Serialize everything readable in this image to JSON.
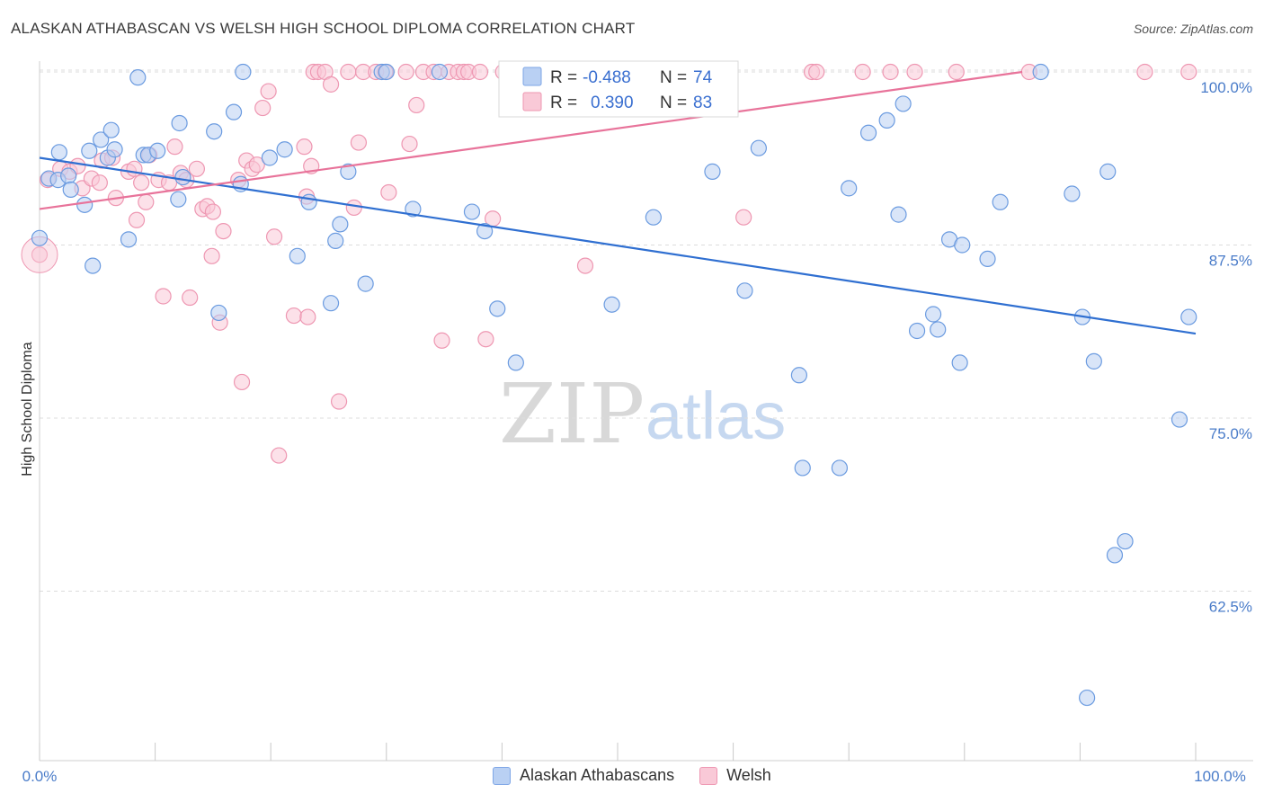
{
  "header": {
    "title": "ALASKAN ATHABASCAN VS WELSH HIGH SCHOOL DIPLOMA CORRELATION CHART",
    "source": "Source: ZipAtlas.com"
  },
  "watermark": {
    "zip": "ZIP",
    "atlas": "atlas"
  },
  "legend_top": {
    "rows": [
      {
        "r_label": "R =",
        "r_value": "-0.488",
        "n_label": "N =",
        "n_value": "74"
      },
      {
        "r_label": "R =",
        "r_value": "0.390",
        "n_label": "N =",
        "n_value": "83"
      }
    ]
  },
  "legend_bottom": {
    "items": [
      "Alaskan Athabascans",
      "Welsh"
    ]
  },
  "chart_data": {
    "type": "scatter",
    "title": "ALASKAN ATHABASCAN VS WELSH HIGH SCHOOL DIPLOMA CORRELATION CHART",
    "xlabel": "",
    "ylabel": "High School Diploma",
    "xlim": [
      0,
      105
    ],
    "ylim": [
      50,
      101.5
    ],
    "x_ticks": [
      "0.0%",
      "100.0%"
    ],
    "y_ticks": [
      {
        "value": 62.5,
        "label": "62.5%"
      },
      {
        "value": 75.0,
        "label": "75.0%"
      },
      {
        "value": 87.5,
        "label": "87.5%"
      },
      {
        "value": 100.0,
        "label": "100.0%"
      }
    ],
    "grid": "horizontal dashed",
    "legend_placement": "top-center",
    "colors": {
      "blue": "#6b9be0",
      "blue_fill": "#b9d0f3",
      "blue_line": "#2f6fd1",
      "pink": "#ee97b2",
      "pink_fill": "#f9c9d7",
      "pink_line": "#e8739a"
    },
    "series": [
      {
        "name": "Alaskan Athabascans",
        "color": "#6b9be0",
        "trend": {
          "x": [
            0,
            100
          ],
          "y": [
            93.8,
            81.1
          ]
        },
        "points": [
          [
            0,
            88.0
          ],
          [
            0.8,
            92.3
          ],
          [
            1.6,
            92.2
          ],
          [
            1.7,
            94.2
          ],
          [
            2.5,
            92.5
          ],
          [
            2.7,
            91.5
          ],
          [
            3.9,
            90.4
          ],
          [
            4.3,
            94.3
          ],
          [
            4.6,
            86.0
          ],
          [
            5.3,
            95.1
          ],
          [
            5.9,
            93.8
          ],
          [
            6.2,
            95.8
          ],
          [
            6.5,
            94.4
          ],
          [
            7.7,
            87.9
          ],
          [
            8.5,
            99.6
          ],
          [
            9.0,
            94.0
          ],
          [
            9.4,
            94.0
          ],
          [
            10.2,
            94.3
          ],
          [
            12.0,
            90.8
          ],
          [
            12.1,
            96.3
          ],
          [
            12.4,
            92.4
          ],
          [
            15.1,
            95.7
          ],
          [
            15.5,
            82.6
          ],
          [
            16.8,
            97.1
          ],
          [
            17.4,
            91.9
          ],
          [
            17.6,
            100.0
          ],
          [
            19.9,
            93.8
          ],
          [
            21.2,
            94.4
          ],
          [
            22.3,
            86.7
          ],
          [
            23.3,
            90.6
          ],
          [
            25.2,
            83.3
          ],
          [
            25.6,
            87.8
          ],
          [
            26.0,
            89.0
          ],
          [
            26.7,
            92.8
          ],
          [
            28.2,
            84.7
          ],
          [
            29.6,
            100.0
          ],
          [
            30.0,
            100.0
          ],
          [
            32.3,
            90.1
          ],
          [
            34.6,
            100.0
          ],
          [
            37.4,
            89.9
          ],
          [
            38.5,
            88.5
          ],
          [
            39.6,
            82.9
          ],
          [
            41.2,
            79.0
          ],
          [
            49.5,
            83.2
          ],
          [
            53.1,
            89.5
          ],
          [
            58.2,
            92.8
          ],
          [
            61.0,
            84.2
          ],
          [
            62.2,
            94.5
          ],
          [
            65.7,
            78.1
          ],
          [
            66.0,
            71.4
          ],
          [
            69.2,
            71.4
          ],
          [
            70.0,
            91.6
          ],
          [
            71.7,
            95.6
          ],
          [
            73.3,
            96.5
          ],
          [
            74.3,
            89.7
          ],
          [
            74.7,
            97.7
          ],
          [
            75.9,
            81.3
          ],
          [
            77.3,
            82.5
          ],
          [
            77.7,
            81.4
          ],
          [
            78.7,
            87.9
          ],
          [
            79.6,
            79.0
          ],
          [
            79.8,
            87.5
          ],
          [
            82.0,
            86.5
          ],
          [
            83.1,
            90.6
          ],
          [
            86.6,
            100.0
          ],
          [
            89.3,
            91.2
          ],
          [
            90.2,
            82.3
          ],
          [
            90.6,
            54.8
          ],
          [
            91.2,
            79.1
          ],
          [
            92.4,
            92.8
          ],
          [
            93.0,
            65.1
          ],
          [
            93.9,
            66.1
          ],
          [
            98.6,
            74.9
          ],
          [
            99.4,
            82.3
          ]
        ]
      },
      {
        "name": "Welsh",
        "color": "#ee97b2",
        "trend": {
          "x": [
            0,
            85
          ],
          "y": [
            90.1,
            100.0
          ]
        },
        "points": [
          [
            0,
            86.8
          ],
          [
            0.7,
            92.2
          ],
          [
            1.8,
            93.0
          ],
          [
            2.6,
            92.8
          ],
          [
            3.3,
            93.2
          ],
          [
            3.7,
            91.6
          ],
          [
            4.5,
            92.3
          ],
          [
            5.2,
            92.0
          ],
          [
            5.4,
            93.6
          ],
          [
            6.3,
            93.8
          ],
          [
            6.6,
            90.9
          ],
          [
            7.7,
            92.8
          ],
          [
            8.2,
            93.0
          ],
          [
            8.4,
            89.3
          ],
          [
            8.8,
            92.0
          ],
          [
            9.2,
            90.6
          ],
          [
            9.5,
            94.0
          ],
          [
            10.3,
            92.2
          ],
          [
            10.7,
            83.8
          ],
          [
            11.2,
            92.0
          ],
          [
            11.7,
            94.6
          ],
          [
            12.2,
            92.7
          ],
          [
            12.7,
            92.2
          ],
          [
            13.0,
            83.7
          ],
          [
            13.6,
            93.0
          ],
          [
            14.1,
            90.1
          ],
          [
            14.5,
            90.3
          ],
          [
            14.9,
            86.7
          ],
          [
            15.6,
            81.9
          ],
          [
            15.9,
            88.5
          ],
          [
            17.2,
            92.2
          ],
          [
            17.5,
            77.6
          ],
          [
            17.9,
            93.6
          ],
          [
            18.4,
            93.0
          ],
          [
            18.8,
            93.3
          ],
          [
            19.3,
            97.4
          ],
          [
            19.8,
            98.6
          ],
          [
            20.3,
            88.1
          ],
          [
            20.7,
            72.3
          ],
          [
            22.0,
            82.4
          ],
          [
            22.9,
            94.6
          ],
          [
            23.1,
            91.0
          ],
          [
            23.2,
            82.3
          ],
          [
            23.5,
            93.2
          ],
          [
            23.7,
            100.0
          ],
          [
            24.1,
            100.0
          ],
          [
            24.7,
            100.0
          ],
          [
            25.2,
            99.1
          ],
          [
            25.9,
            76.2
          ],
          [
            26.7,
            100.0
          ],
          [
            27.2,
            90.2
          ],
          [
            27.6,
            94.9
          ],
          [
            28.0,
            100.0
          ],
          [
            29.1,
            100.0
          ],
          [
            29.9,
            100.0
          ],
          [
            30.2,
            91.3
          ],
          [
            31.7,
            100.0
          ],
          [
            32.0,
            94.8
          ],
          [
            32.6,
            97.6
          ],
          [
            33.2,
            100.0
          ],
          [
            34.1,
            100.0
          ],
          [
            34.8,
            80.6
          ],
          [
            35.4,
            100.0
          ],
          [
            36.2,
            100.0
          ],
          [
            36.7,
            100.0
          ],
          [
            37.1,
            100.0
          ],
          [
            38.1,
            100.0
          ],
          [
            38.6,
            80.7
          ],
          [
            39.2,
            89.4
          ],
          [
            40.1,
            100.0
          ],
          [
            41.0,
            100.0
          ],
          [
            47.2,
            86.0
          ],
          [
            60.9,
            89.5
          ],
          [
            66.8,
            100.0
          ],
          [
            67.2,
            100.0
          ],
          [
            71.2,
            100.0
          ],
          [
            73.6,
            100.0
          ],
          [
            75.7,
            100.0
          ],
          [
            79.3,
            100.0
          ],
          [
            85.6,
            100.0
          ],
          [
            95.6,
            100.0
          ],
          [
            99.4,
            100.0
          ],
          [
            15.0,
            89.9
          ]
        ]
      }
    ]
  }
}
